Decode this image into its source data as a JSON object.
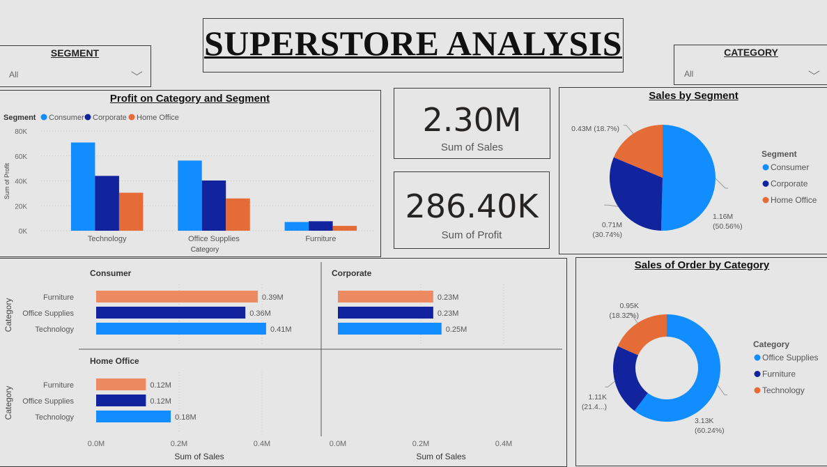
{
  "header": {
    "title": "SUPERSTORE ANALYSIS"
  },
  "colors": {
    "consumer": "#118dff",
    "corporate": "#12239e",
    "home_office": "#e66c37",
    "furniture_light": "#ee8a62",
    "background": "#e6e6e6"
  },
  "slicers": {
    "segment": {
      "label": "SEGMENT",
      "value": "All",
      "icon": "chevron-down-icon"
    },
    "category": {
      "label": "CATEGORY",
      "value": "All",
      "icon": "chevron-down-icon"
    }
  },
  "kpis": {
    "sales": {
      "value": "2.30M",
      "label": "Sum of Sales"
    },
    "profit": {
      "value": "286.40K",
      "label": "Sum of Profit"
    }
  },
  "chart_data": [
    {
      "id": "profit_category_segment",
      "type": "bar",
      "title": "Profit on Category and Segment",
      "legend_title": "Segment",
      "categories": [
        "Technology",
        "Office Supplies",
        "Furniture"
      ],
      "series": [
        {
          "name": "Consumer",
          "values": [
            70800,
            56300,
            6990
          ]
        },
        {
          "name": "Corporate",
          "values": [
            44000,
            40300,
            7600
          ]
        },
        {
          "name": "Home Office",
          "values": [
            30500,
            25900,
            3900
          ]
        }
      ],
      "xlabel": "Category",
      "ylabel": "Sum of Profit",
      "ylim": [
        0,
        80000
      ],
      "yticks": [
        "0K",
        "20K",
        "40K",
        "60K",
        "80K"
      ],
      "grid": true,
      "legend_position": "top-left"
    },
    {
      "id": "sales_by_segment",
      "type": "pie",
      "title": "Sales by Segment",
      "legend_title": "Segment",
      "slices": [
        {
          "name": "Consumer",
          "value": 1.16,
          "label": "1.16M",
          "pct": "(50.56%)"
        },
        {
          "name": "Corporate",
          "value": 0.71,
          "label": "0.71M",
          "pct": "(30.74%)"
        },
        {
          "name": "Home Office",
          "value": 0.43,
          "label": "0.43M (18.7%)",
          "pct": ""
        }
      ],
      "legend_position": "right"
    },
    {
      "id": "sales_small_multiples",
      "type": "bar",
      "orientation": "horizontal",
      "categories": [
        "Furniture",
        "Office Supplies",
        "Technology"
      ],
      "ylabel": "Category",
      "xlabel": "Sum of Sales",
      "xlim": [
        0,
        0.5
      ],
      "xticks": [
        "0.0M",
        "0.2M",
        "0.4M"
      ],
      "panels": [
        {
          "name": "Consumer",
          "values": [
            0.39,
            0.36,
            0.41
          ],
          "labels": [
            "0.39M",
            "0.36M",
            "0.41M"
          ]
        },
        {
          "name": "Corporate",
          "values": [
            0.23,
            0.23,
            0.25
          ],
          "labels": [
            "0.23M",
            "0.23M",
            "0.25M"
          ]
        },
        {
          "name": "Home Office",
          "values": [
            0.12,
            0.12,
            0.18
          ],
          "labels": [
            "0.12M",
            "0.12M",
            "0.18M"
          ]
        }
      ]
    },
    {
      "id": "sales_order_by_category",
      "type": "pie",
      "variant": "donut",
      "title": "Sales of Order by Category",
      "legend_title": "Category",
      "slices": [
        {
          "name": "Office Supplies",
          "value": 3.13,
          "label": "3.13K",
          "pct": "(60.24%)"
        },
        {
          "name": "Furniture",
          "value": 1.11,
          "label": "1.11K",
          "pct": "(21.4...)"
        },
        {
          "name": "Technology",
          "value": 0.95,
          "label": "0.95K",
          "pct": "(18.32%)"
        }
      ],
      "legend_position": "right"
    }
  ]
}
